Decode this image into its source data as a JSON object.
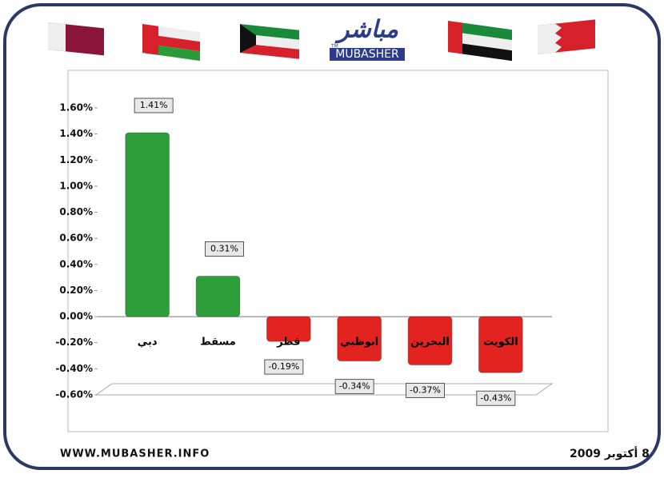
{
  "header": {
    "logo_arabic": "مباشر",
    "logo_trademark": "TM",
    "logo_latin": "MUBASHER"
  },
  "chart_data": {
    "type": "bar",
    "categories": [
      "دبي",
      "مسقط",
      "قطر",
      "ابوظبي",
      "البحرين",
      "الكويت"
    ],
    "values": [
      1.41,
      0.31,
      -0.19,
      -0.34,
      -0.37,
      -0.43
    ],
    "value_labels": [
      "1.41%",
      "0.31%",
      "-0.19%",
      "-0.34%",
      "-0.37%",
      "-0.43%"
    ],
    "colors": [
      "#2e9e3a",
      "#2e9e3a",
      "#e3231f",
      "#e3231f",
      "#e3231f",
      "#e3231f"
    ],
    "ylim": [
      -0.6,
      1.6
    ],
    "yticks": [
      {
        "value": -0.6,
        "label": "-0.60%"
      },
      {
        "value": -0.4,
        "label": "-0.40%"
      },
      {
        "value": -0.2,
        "label": "-0.20%"
      },
      {
        "value": 0,
        "label": "0.00%"
      },
      {
        "value": 0.2,
        "label": "0.20%"
      },
      {
        "value": 0.4,
        "label": "0.40%"
      },
      {
        "value": 0.6,
        "label": "0.60%"
      },
      {
        "value": 0.8,
        "label": "0.80%"
      },
      {
        "value": 1.0,
        "label": "1.00%"
      },
      {
        "value": 1.2,
        "label": "1.20%"
      },
      {
        "value": 1.4,
        "label": "1.40%"
      },
      {
        "value": 1.6,
        "label": "1.60%"
      }
    ],
    "grid": false
  },
  "footer": {
    "website": "WWW.MUBASHER.INFO",
    "date": "8 أكتوبر 2009"
  }
}
